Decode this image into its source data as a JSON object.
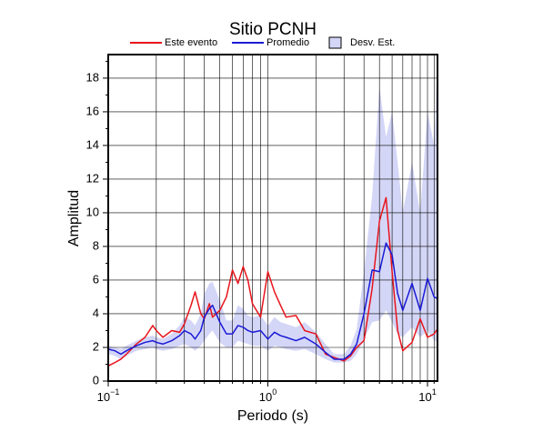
{
  "chart_data": {
    "type": "line",
    "title": "Sitio PCNH",
    "x_label": "Periodo (s)",
    "y_label": "Amplitud",
    "log_x": true,
    "grid": true,
    "xlim": [
      0.1,
      11.55
    ],
    "ylim": [
      0,
      19.4
    ],
    "xticks": [
      {
        "value": 0.1,
        "label": "10",
        "exp": "−1"
      },
      {
        "value": 1,
        "label": "10",
        "exp": "0"
      },
      {
        "value": 10,
        "label": "10",
        "exp": "1"
      }
    ],
    "xminorticks": [
      0.2,
      0.3,
      0.4,
      0.5,
      0.6,
      0.7,
      0.8,
      0.9,
      2,
      3,
      4,
      5,
      6,
      7,
      8,
      9,
      11
    ],
    "yticks": [
      0,
      2,
      4,
      6,
      8,
      10,
      12,
      14,
      16,
      18
    ],
    "yminorticks": [
      1,
      3,
      5,
      7,
      9,
      11,
      13,
      15,
      17,
      19
    ],
    "x": [
      0.1,
      0.11,
      0.12,
      0.13,
      0.15,
      0.17,
      0.19,
      0.2,
      0.22,
      0.25,
      0.28,
      0.3,
      0.33,
      0.35,
      0.38,
      0.4,
      0.43,
      0.45,
      0.5,
      0.55,
      0.6,
      0.65,
      0.7,
      0.75,
      0.8,
      0.9,
      1.0,
      1.1,
      1.2,
      1.3,
      1.5,
      1.7,
      2.0,
      2.3,
      2.6,
      3.0,
      3.3,
      3.6,
      4.0,
      4.5,
      5.0,
      5.5,
      6.0,
      6.5,
      7.0,
      8.0,
      9.0,
      10,
      11,
      11.55
    ],
    "band": {
      "name": "Desv. Est.",
      "color": "#d4d6f7",
      "low": [
        1.6,
        1.5,
        1.3,
        1.5,
        1.8,
        1.9,
        2.0,
        1.9,
        1.8,
        1.9,
        2.1,
        2.2,
        2.0,
        1.8,
        2.1,
        2.4,
        2.8,
        3.0,
        2.3,
        2.0,
        2.0,
        2.4,
        2.3,
        2.2,
        2.1,
        2.1,
        1.8,
        2.1,
        2.0,
        1.9,
        1.8,
        1.9,
        1.6,
        1.3,
        1.1,
        1.1,
        1.2,
        1.6,
        2.5,
        3.5,
        3.6,
        4.2,
        3.5,
        2.8,
        2.6,
        3.2,
        2.6,
        3.0,
        2.4,
        2.3
      ],
      "high": [
        2.1,
        2.0,
        1.9,
        2.1,
        2.4,
        2.6,
        2.7,
        2.6,
        2.5,
        2.8,
        3.3,
        3.8,
        3.6,
        3.3,
        4.0,
        5.2,
        5.8,
        5.9,
        4.8,
        3.6,
        3.6,
        4.5,
        4.3,
        3.9,
        3.8,
        3.9,
        3.3,
        3.8,
        3.5,
        3.4,
        3.2,
        3.5,
        2.9,
        2.2,
        1.6,
        1.6,
        2.1,
        3.1,
        6.5,
        11,
        17.5,
        14.5,
        16,
        13,
        10,
        13,
        10,
        16,
        14,
        19.3
      ]
    },
    "series": [
      {
        "name": "Este evento",
        "color": "#e8141c",
        "values": [
          0.9,
          1.1,
          1.3,
          1.6,
          2.2,
          2.6,
          3.3,
          3.0,
          2.6,
          3.0,
          2.9,
          3.4,
          4.5,
          5.3,
          4.0,
          3.7,
          4.6,
          3.8,
          4.2,
          5.0,
          6.6,
          5.8,
          6.8,
          6.0,
          4.6,
          3.8,
          6.5,
          5.3,
          4.5,
          3.8,
          3.9,
          3.0,
          2.8,
          1.6,
          1.4,
          1.2,
          1.5,
          2.0,
          2.4,
          5.5,
          9.5,
          10.9,
          6.5,
          3.0,
          1.8,
          2.3,
          3.7,
          2.6,
          2.8,
          3.1
        ]
      },
      {
        "name": "Promedio",
        "color": "#1a1ad6",
        "values": [
          1.9,
          1.8,
          1.6,
          1.8,
          2.1,
          2.3,
          2.4,
          2.3,
          2.2,
          2.4,
          2.7,
          3.0,
          2.8,
          2.5,
          3.0,
          3.8,
          4.3,
          4.5,
          3.5,
          2.8,
          2.8,
          3.3,
          3.2,
          3.0,
          2.9,
          3.0,
          2.5,
          2.9,
          2.7,
          2.6,
          2.4,
          2.6,
          2.2,
          1.7,
          1.3,
          1.3,
          1.6,
          2.2,
          4.0,
          6.6,
          6.5,
          8.2,
          7.5,
          5.2,
          4.2,
          5.8,
          4.2,
          6.1,
          5.0,
          4.9
        ]
      }
    ]
  }
}
